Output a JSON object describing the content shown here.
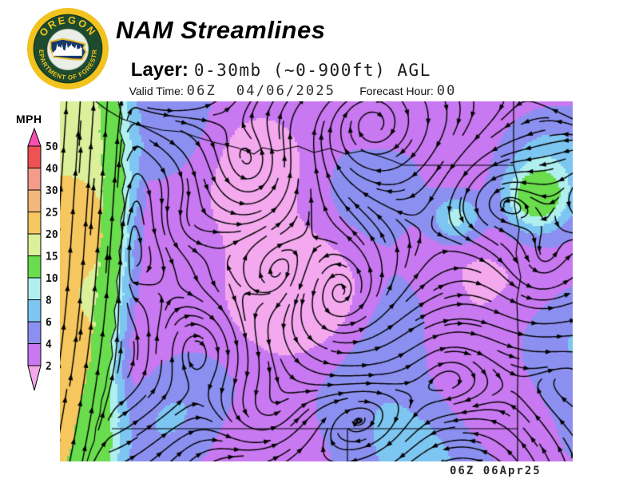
{
  "header": {
    "title": "NAM Streamlines",
    "layer": {
      "label": "Layer:",
      "value": "0-30mb (~0-900ft) AGL"
    },
    "valid_time": {
      "label": "Valid Time: ",
      "value": "06Z  04/06/2025"
    },
    "forecast_hour": {
      "label": "Forecast Hour: ",
      "value": "00"
    }
  },
  "logo": {
    "ring_text_top": "OREGON",
    "ring_text_bottom": "DEPARTMENT OF FORESTRY",
    "colors": {
      "ring": "#F2C21E",
      "field": "#1E4B2F",
      "emblem": "#17386B",
      "text": "#F2C41D"
    }
  },
  "legend": {
    "units_label": "MPH",
    "tick_labels": [
      "50",
      "40",
      "30",
      "25",
      "20",
      "15",
      "10",
      "8",
      "6",
      "4",
      "2"
    ],
    "segment_colors": [
      "#EE5252",
      "#F49B8B",
      "#F2B77C",
      "#F6C75F",
      "#DCF09C",
      "#69DD4D",
      "#AFF0EF",
      "#7EC6F2",
      "#8B90F0",
      "#C878F0"
    ],
    "above_max_color": "#F84FB0",
    "below_min_color": "#F4A9E9"
  },
  "map": {
    "stamp": "06Z 06Apr25",
    "stroke_color": "#000000",
    "palette": {
      "lt2": "#F4A9EF",
      "s2_4": "#C878F0",
      "s4_6": "#8B90F0",
      "s6_8": "#7EC6F2",
      "s8_10": "#AFF0EF",
      "s10_15": "#69DD4D",
      "s15_20": "#DCF09C",
      "s20_25": "#F6C75F",
      "s25_30": "#F2B77C",
      "s30_40": "#F49B8B",
      "s40_50": "#EE5252",
      "gt50": "#F84FB0"
    }
  }
}
